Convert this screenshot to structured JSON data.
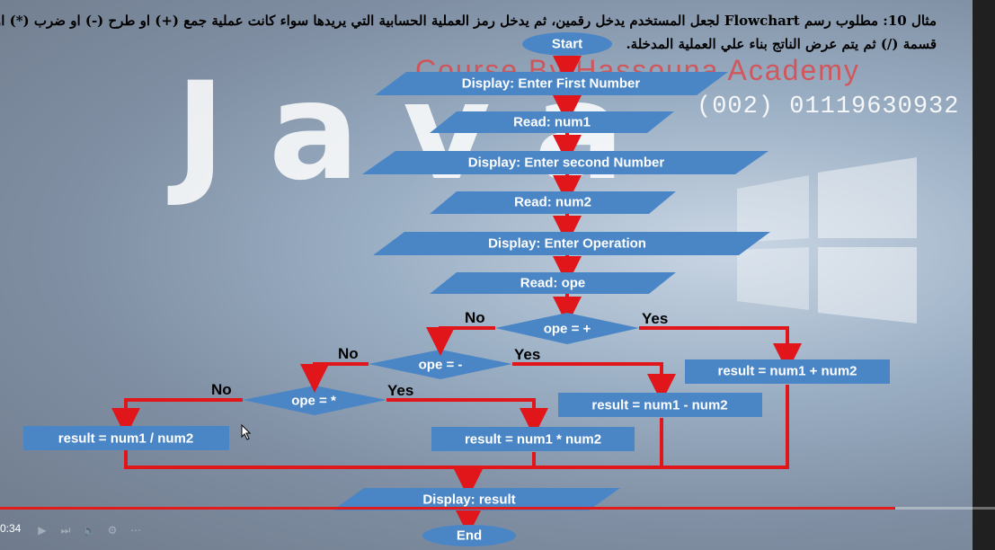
{
  "header": {
    "arabic_line1": "مثال 10: مطلوب رسم Flowchart لجعل المستخدم يدخل رقمين، ثم يدخل رمز العملية الحسابية التي يريدها سواء كانت عملية جمع (+) او طرح (-) او ضرب (*) او",
    "arabic_line2": "قسمة (/) ثم يتم عرض الناتج بناء علي العملية المدخلة."
  },
  "watermark": {
    "big_text": "Java",
    "course_text": "Course By Hassouna Academy",
    "phone": "(002) 01119630932"
  },
  "flowchart": {
    "start": "Start",
    "display_first": "Display: Enter First Number",
    "read_num1": "Read: num1",
    "display_second": "Display: Enter second Number",
    "read_num2": "Read: num2",
    "display_operation": "Display: Enter Operation",
    "read_ope": "Read: ope",
    "decision_plus": "ope = +",
    "decision_minus": "ope = -",
    "decision_mult": "ope = *",
    "yes": "Yes",
    "no": "No",
    "result_add": "result = num1 + num2",
    "result_sub": "result = num1 - num2",
    "result_mul": "result = num1 * num2",
    "result_div": "result = num1 / num2",
    "display_result": "Display: result",
    "end": "End"
  },
  "player": {
    "time": "0:34",
    "progress": 0.9
  },
  "colors": {
    "shape_fill": "#4a86c6",
    "arrow": "#e0161b",
    "progress": "#e21b1b"
  }
}
